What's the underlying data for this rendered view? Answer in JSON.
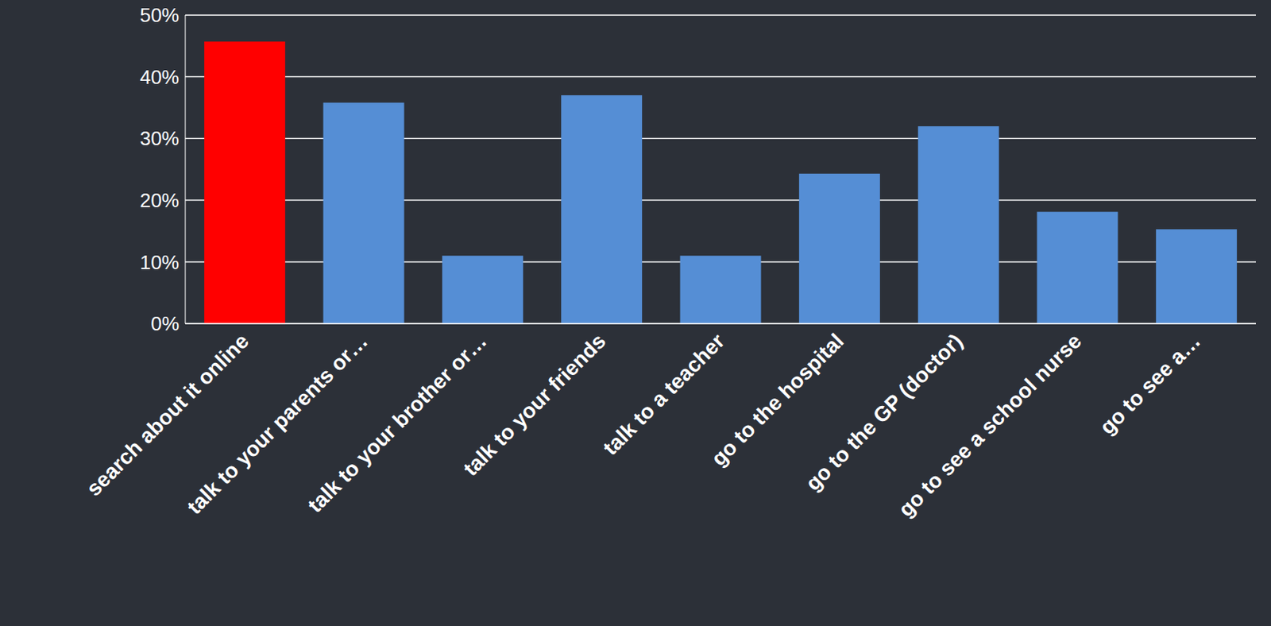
{
  "chart_data": {
    "type": "bar",
    "categories": [
      "search about it online",
      "talk to your parents or…",
      "talk to your brother or…",
      "talk to your friends",
      "talk to a teacher",
      "go to the hospital",
      "go to the GP (doctor)",
      "go to see a school nurse",
      "go to see a…"
    ],
    "values": [
      45.7,
      35.8,
      11,
      37,
      11,
      24.3,
      32,
      18.1,
      15.3
    ],
    "colors": [
      "#ff0000",
      "#558ed5",
      "#558ed5",
      "#558ed5",
      "#558ed5",
      "#558ed5",
      "#558ed5",
      "#558ed5",
      "#558ed5"
    ],
    "ylim": [
      0,
      50
    ],
    "yticks": [
      {
        "value": 0,
        "label": "0%"
      },
      {
        "value": 10,
        "label": "10%"
      },
      {
        "value": 20,
        "label": "20%"
      },
      {
        "value": 30,
        "label": "30%"
      },
      {
        "value": 40,
        "label": "40%"
      },
      {
        "value": 50,
        "label": "50%"
      }
    ],
    "grid": true
  }
}
